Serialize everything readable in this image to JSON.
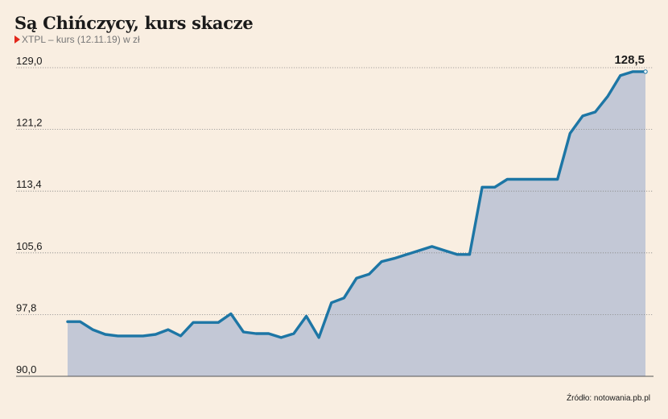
{
  "title": "Są Chińczycy, kurs skacze",
  "subtitle": "XTPL – kurs (12.11.19) w zł",
  "source": "Źródło: notowania.pb.pl",
  "colors": {
    "line": "#1d76a5",
    "area": "#c3c8d6",
    "background": "#f9eee1",
    "marker": "#e2271b"
  },
  "chart_data": {
    "type": "area",
    "title": "Są Chińczycy, kurs skacze",
    "subtitle": "XTPL – kurs (12.11.19) w zł",
    "ylabel": "",
    "xlabel": "",
    "ylim": [
      90.0,
      129.0
    ],
    "yticks": [
      "90,0",
      "97,8",
      "105,6",
      "113,4",
      "121,2",
      "129,0"
    ],
    "last_value_label": "128,5",
    "grid": true,
    "series": [
      {
        "values": [
          96.9,
          96.9,
          95.9,
          95.3,
          95.1,
          95.1,
          95.1,
          95.3,
          95.9,
          95.1,
          96.8,
          96.8,
          96.8,
          97.9,
          95.6,
          95.4,
          95.4,
          94.9,
          95.4,
          97.6,
          94.9,
          99.3,
          99.9,
          102.4,
          102.9,
          104.5,
          104.9,
          105.4,
          105.9,
          106.4,
          105.9,
          105.4,
          105.4,
          113.9,
          113.9,
          114.9,
          114.9,
          114.9,
          114.9,
          114.9,
          120.7,
          122.9,
          123.4,
          125.4,
          128.0,
          128.5,
          128.5
        ]
      }
    ]
  }
}
